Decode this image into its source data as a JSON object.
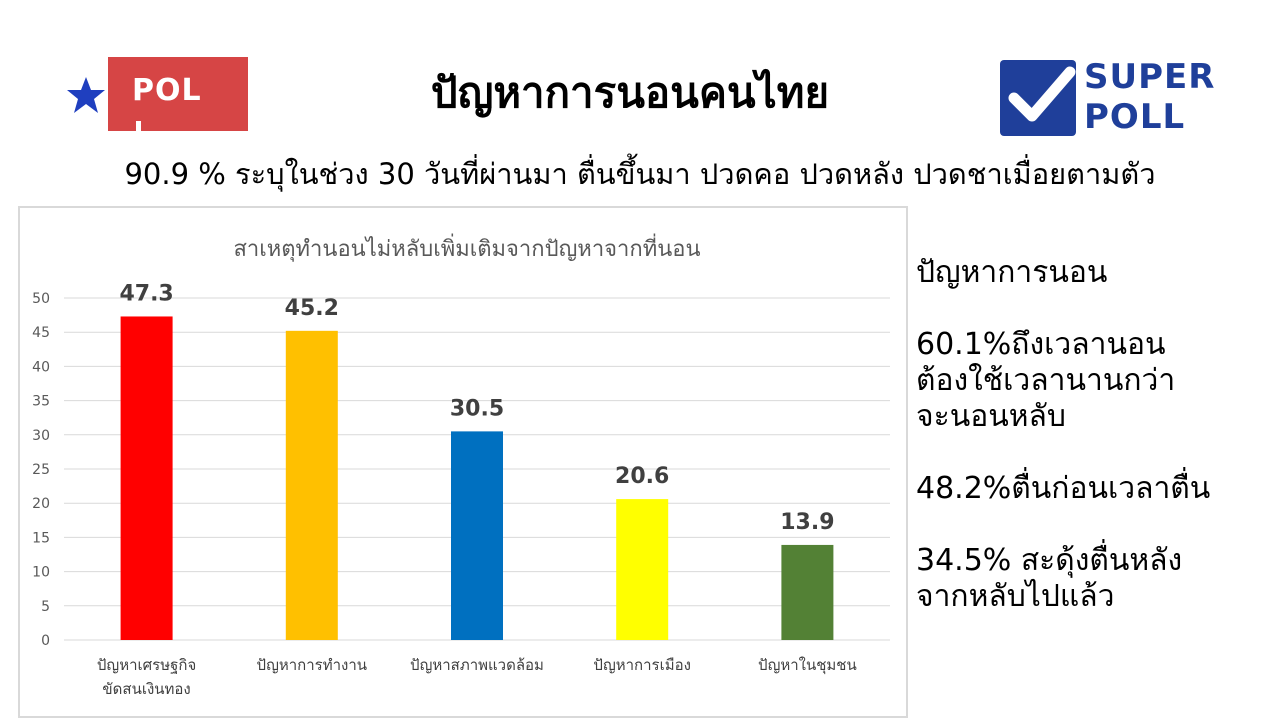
{
  "header": {
    "logo_left_text": "POL",
    "title": "ปัญหาการนอนคนไทย",
    "subtitle": "90.9 % ระบุในช่วง 30 วันที่ผ่านมา ตื่นขึ้นมา ปวดคอ ปวดหลัง ปวดชาเมื่อยตามตัว",
    "logo_right_line1": "SUPER",
    "logo_right_line2": "POLL"
  },
  "colors": {
    "logo_left_box": "#d64545",
    "logo_left_star": "#1f3fbf",
    "logo_right_blue": "#1f3f9a"
  },
  "chart_data": {
    "type": "bar",
    "title": "สาเหตุทำนอนไม่หลับเพิ่มเติมจากปัญหาจากที่นอน",
    "categories": [
      [
        "ปัญหาเศรษฐกิจ",
        "ขัดสนเงินทอง"
      ],
      [
        "ปัญหาการทำงาน"
      ],
      [
        "ปัญหาสภาพแวดล้อม"
      ],
      [
        "ปัญหาการเมือง"
      ],
      [
        "ปัญหาในชุมชน"
      ]
    ],
    "values": [
      47.3,
      45.2,
      30.5,
      20.6,
      13.9
    ],
    "value_labels": [
      "47.3",
      "45.2",
      "30.5",
      "20.6",
      "13.9"
    ],
    "bar_colors": [
      "#ff0000",
      "#ffc000",
      "#0070c0",
      "#ffff00",
      "#538135"
    ],
    "ylim": [
      0,
      50
    ],
    "yticks": [
      "0",
      "5",
      "10",
      "15",
      "20",
      "25",
      "30",
      "35",
      "40",
      "45",
      "50"
    ],
    "grid": true,
    "legend": "none"
  },
  "side_panel": {
    "heading": "ปัญหาการนอน",
    "items": [
      [
        "60.1%ถึงเวลานอน",
        "ต้องใช้เวลานานกว่า",
        "จะนอนหลับ"
      ],
      [
        "48.2%ตื่นก่อนเวลาตื่น"
      ],
      [
        "34.5% สะดุ้งตื่นหลัง",
        "จากหลับไปแล้ว"
      ]
    ]
  }
}
